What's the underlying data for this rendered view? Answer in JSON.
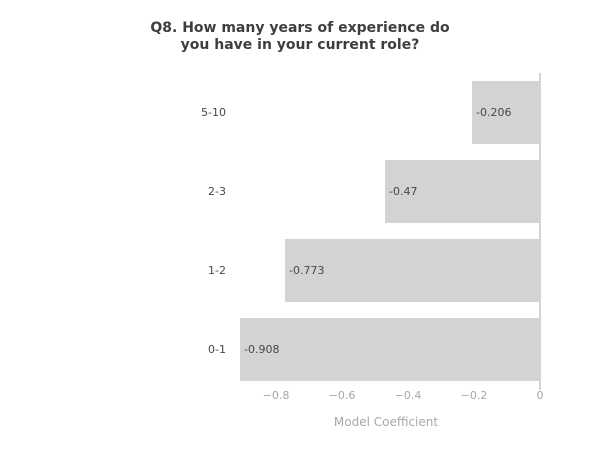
{
  "chart_data": {
    "type": "bar",
    "orientation": "horizontal",
    "title": "Q8. How many years of experience do you have in your current role?",
    "title_lines": [
      "Q8. How many years of experience do",
      "you have in your current role?"
    ],
    "categories": [
      "5-10",
      "2-3",
      "1-2",
      "0-1"
    ],
    "values": [
      -0.206,
      -0.47,
      -0.773,
      -0.908
    ],
    "bar_labels": [
      "-0.206",
      "-0.47",
      "-0.773",
      "-0.908"
    ],
    "xlabel": "Model Coefficient",
    "ylabel": "",
    "x_ticks": [
      {
        "value": -0.8,
        "label": "−0.8"
      },
      {
        "value": -0.6,
        "label": "−0.6"
      },
      {
        "value": -0.4,
        "label": "−0.4"
      },
      {
        "value": -0.2,
        "label": "−0.2"
      },
      {
        "value": 0,
        "label": "0"
      }
    ],
    "xlim": [
      -0.93,
      0
    ],
    "grid": false,
    "legend": false,
    "colors": {
      "background": "#ffffff",
      "bar_fill": "#d3d3d3",
      "zero_line": "#d4d4d4",
      "title_text": "#3e3e3e",
      "label_text": "#474747",
      "axis_text": "#a7a7a7"
    }
  }
}
